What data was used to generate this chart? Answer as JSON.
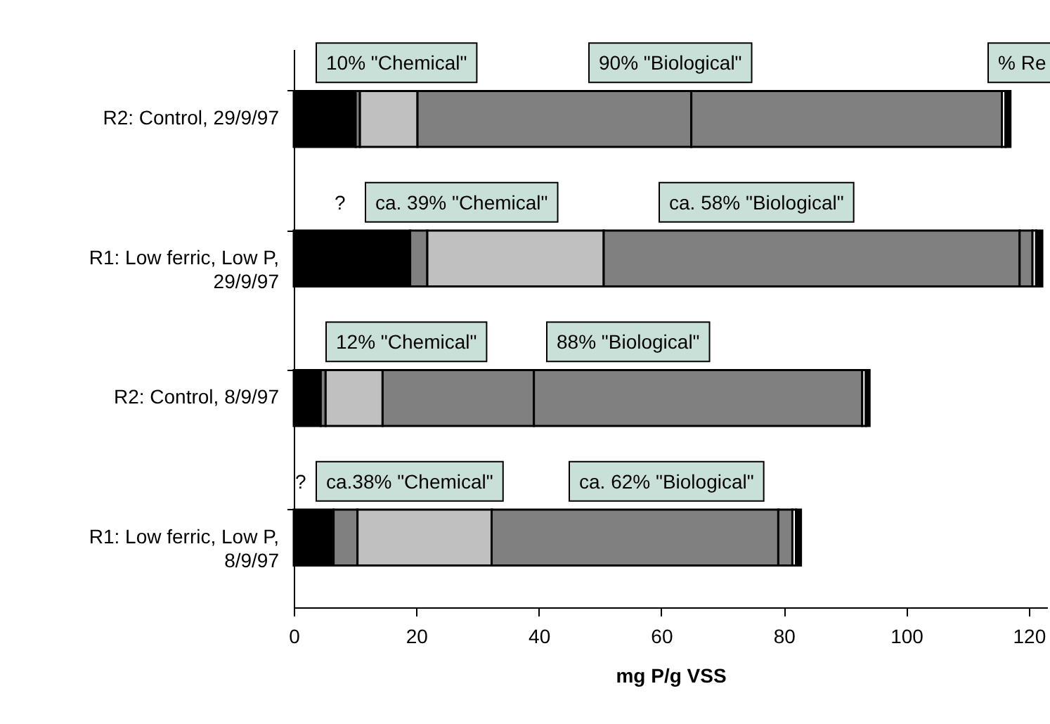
{
  "chart_data": {
    "type": "bar",
    "orientation": "horizontal",
    "stacked": true,
    "xlabel": "mg P/g VSS",
    "categories": [
      "R2: Control, 29/9/97",
      "R1: Low ferric, Low P, 29/9/97",
      "R2: Control, 8/9/97",
      "R1: Low ferric, Low P, 8/9/97"
    ],
    "series": [
      {
        "color": "#000000",
        "values": [
          10.1,
          19.0,
          4.4,
          6.5
        ]
      },
      {
        "color": "#808080",
        "values": [
          0.7,
          2.8,
          0.8,
          3.9
        ]
      },
      {
        "color": "#c0c0c0",
        "values": [
          9.4,
          28.8,
          9.3,
          21.9
        ]
      },
      {
        "color": "#808080",
        "values": [
          44.7,
          67.9,
          24.7,
          46.8
        ]
      },
      {
        "color": "#808080",
        "values": [
          50.7,
          2.1,
          53.6,
          2.3
        ]
      },
      {
        "color": "#ffffff",
        "values": [
          0.6,
          0.6,
          0.6,
          0.6
        ]
      },
      {
        "color": "#000000",
        "values": [
          0.8,
          1.0,
          0.6,
          0.8
        ]
      }
    ],
    "xlim": [
      0,
      123
    ],
    "xticks": [
      0,
      20,
      40,
      60,
      80,
      100,
      120
    ],
    "grid": false,
    "legend": false,
    "annotations": [
      "10% \"Chemical\"",
      "90% \"Biological\"",
      "% Re",
      "?",
      "ca. 39% \"Chemical\"",
      "ca. 58% \"Biological\"",
      "12% \"Chemical\"",
      "88% \"Biological\"",
      "?",
      "ca.38% \"Chemical\"",
      "ca. 62% \"Biological\""
    ]
  }
}
